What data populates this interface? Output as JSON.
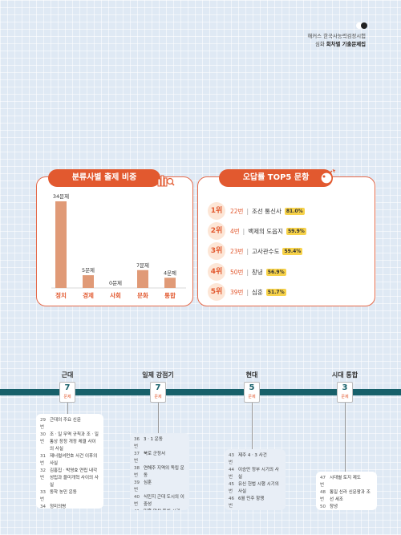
{
  "brand": {
    "line1": "해커스 한국사능력검정시험",
    "line2_light": "심화 ",
    "line2_bold": "회차별 기출문제집"
  },
  "chart_card": {
    "title": "분류사별 출제 비중"
  },
  "chart_data": {
    "type": "bar",
    "categories": [
      "정치",
      "경제",
      "사회",
      "문화",
      "통합"
    ],
    "values": [
      34,
      5,
      0,
      7,
      4
    ],
    "value_labels": [
      "34문제",
      "5문제",
      "0문제",
      "7문제",
      "4문제"
    ],
    "title": "분류사별 출제 비중",
    "colors": {
      "bar": "#e09a77",
      "label": "#e2592f"
    }
  },
  "top5": {
    "title": "오답률 TOP5 문항",
    "items": [
      {
        "rank": "1위",
        "num": "22번",
        "topic": "조선 통신사",
        "rate": "81.0%"
      },
      {
        "rank": "2위",
        "num": "4번",
        "topic": "백제의 도읍지",
        "rate": "59.9%"
      },
      {
        "rank": "3위",
        "num": "23번",
        "topic": "고사관수도",
        "rate": "59.4%"
      },
      {
        "rank": "4위",
        "num": "50번",
        "topic": "창녕",
        "rate": "56.9%"
      },
      {
        "rank": "5위",
        "num": "39번",
        "topic": "심훈",
        "rate": "51.7%"
      }
    ]
  },
  "timeline": {
    "unit": "문제",
    "eras": [
      {
        "name": "근대",
        "count": "7"
      },
      {
        "name": "일제 강점기",
        "count": "7"
      },
      {
        "name": "현대",
        "count": "5"
      },
      {
        "name": "시대 통합",
        "count": "3"
      }
    ],
    "lists": [
      [
        {
          "k": "29번",
          "v": "근대의 주요 신문"
        },
        {
          "k": "30번",
          "v": "조ㆍ일 무역 규칙과 조ㆍ일 통상 장정 개정 체결 사이의 사실"
        },
        {
          "k": "31번",
          "v": "제너럴셔먼호 사건 이후의 사실"
        },
        {
          "k": "32번",
          "v": "김홍집ㆍ박영효 연립 내각 성립과 을미개혁 사이의 사실"
        },
        {
          "k": "33번",
          "v": "동학 농민 운동"
        },
        {
          "k": "34번",
          "v": "정미의병"
        },
        {
          "k": "35번",
          "v": "광무개혁"
        }
      ],
      [
        {
          "k": "36번",
          "v": "3ㆍ1 운동"
        },
        {
          "k": "37번",
          "v": "북로 군정서"
        },
        {
          "k": "38번",
          "v": "연해주 지역의 독립 운동"
        },
        {
          "k": "39번",
          "v": "심훈"
        },
        {
          "k": "40번",
          "v": "식민지 근대 도시의 이중성"
        },
        {
          "k": "41번",
          "v": "민족 말살 통치 시기"
        },
        {
          "k": "42번",
          "v": "신채호"
        }
      ],
      [
        {
          "k": "43번",
          "v": "제주 4ㆍ3 사건"
        },
        {
          "k": "44번",
          "v": "이승만 정부 시기의 사실"
        },
        {
          "k": "45번",
          "v": "유신 헌법 시행 시기의 사실"
        },
        {
          "k": "46번",
          "v": "6월 민주 항쟁"
        },
        {
          "k": "49번",
          "v": "전두환 정부"
        }
      ],
      [
        {
          "k": "47번",
          "v": "시대별 토지 제도"
        },
        {
          "k": "48번",
          "v": "통일 신라 신문왕과 조선 세조"
        },
        {
          "k": "50번",
          "v": "창녕"
        }
      ]
    ]
  }
}
